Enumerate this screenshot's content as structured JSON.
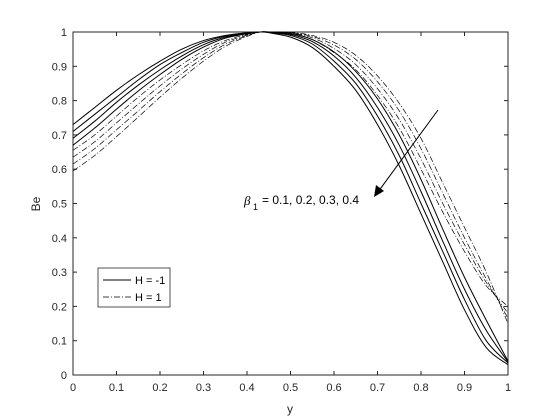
{
  "chart_data": {
    "type": "line",
    "xlabel": "y",
    "ylabel": "Be",
    "xlim": [
      0,
      1
    ],
    "ylim": [
      0,
      1
    ],
    "xticks": [
      "0",
      "0.1",
      "0.2",
      "0.3",
      "0.4",
      "0.5",
      "0.6",
      "0.7",
      "0.8",
      "0.9",
      "1"
    ],
    "yticks": [
      "0",
      "0.1",
      "0.2",
      "0.3",
      "0.4",
      "0.5",
      "0.6",
      "0.7",
      "0.8",
      "0.9",
      "1"
    ],
    "x": [
      0,
      0.05,
      0.1,
      0.15,
      0.2,
      0.25,
      0.3,
      0.35,
      0.4,
      0.43,
      0.45,
      0.5,
      0.55,
      0.6,
      0.65,
      0.7,
      0.75,
      0.8,
      0.85,
      0.9,
      0.95,
      1
    ],
    "series": [
      {
        "group": "H = -1",
        "style": "solid",
        "values": [
          0.73,
          0.78,
          0.83,
          0.875,
          0.915,
          0.95,
          0.975,
          0.99,
          0.998,
          1.0,
          0.998,
          0.985,
          0.955,
          0.9,
          0.83,
          0.73,
          0.61,
          0.47,
          0.33,
          0.19,
          0.08,
          0.03
        ]
      },
      {
        "group": "H = -1",
        "style": "solid",
        "values": [
          0.71,
          0.76,
          0.81,
          0.86,
          0.905,
          0.94,
          0.97,
          0.988,
          0.997,
          1.0,
          0.999,
          0.99,
          0.965,
          0.915,
          0.85,
          0.755,
          0.64,
          0.5,
          0.36,
          0.22,
          0.1,
          0.035
        ]
      },
      {
        "group": "H = -1",
        "style": "solid",
        "values": [
          0.69,
          0.74,
          0.795,
          0.845,
          0.89,
          0.93,
          0.963,
          0.985,
          0.996,
          1.0,
          1.0,
          0.993,
          0.972,
          0.93,
          0.868,
          0.78,
          0.67,
          0.535,
          0.39,
          0.25,
          0.13,
          0.038
        ]
      },
      {
        "group": "H = -1",
        "style": "solid",
        "values": [
          0.67,
          0.72,
          0.775,
          0.828,
          0.876,
          0.92,
          0.956,
          0.982,
          0.995,
          1.0,
          1.0,
          0.996,
          0.978,
          0.942,
          0.885,
          0.805,
          0.7,
          0.57,
          0.425,
          0.285,
          0.16,
          0.04
        ]
      },
      {
        "group": "H = 1",
        "style": "dashdot",
        "values": [
          0.655,
          0.7,
          0.755,
          0.81,
          0.86,
          0.905,
          0.945,
          0.975,
          0.993,
          1.0,
          1.0,
          0.995,
          0.978,
          0.94,
          0.89,
          0.815,
          0.72,
          0.6,
          0.475,
          0.36,
          0.26,
          0.2
        ]
      },
      {
        "group": "H = 1",
        "style": "dashdot",
        "values": [
          0.635,
          0.68,
          0.735,
          0.79,
          0.843,
          0.892,
          0.935,
          0.97,
          0.991,
          1.0,
          1.0,
          0.997,
          0.983,
          0.952,
          0.905,
          0.835,
          0.745,
          0.63,
          0.5,
          0.38,
          0.27,
          0.18
        ]
      },
      {
        "group": "H = 1",
        "style": "dashdot",
        "values": [
          0.615,
          0.66,
          0.715,
          0.77,
          0.826,
          0.878,
          0.925,
          0.964,
          0.989,
          1.0,
          1.0,
          0.998,
          0.987,
          0.962,
          0.92,
          0.855,
          0.77,
          0.66,
          0.53,
          0.4,
          0.28,
          0.165
        ]
      },
      {
        "group": "H = 1",
        "style": "dashdot",
        "values": [
          0.595,
          0.64,
          0.695,
          0.752,
          0.81,
          0.865,
          0.915,
          0.958,
          0.987,
          1.0,
          1.0,
          0.999,
          0.99,
          0.97,
          0.932,
          0.872,
          0.792,
          0.69,
          0.56,
          0.43,
          0.3,
          0.15
        ]
      }
    ],
    "legend": [
      {
        "label": "H = -1",
        "style": "solid"
      },
      {
        "label": "H = 1",
        "style": "dashdot"
      }
    ],
    "legend_position": "lower-left",
    "annotation": {
      "symbol": "β",
      "subscript": "1",
      "text": "= 0.1, 0.2, 0.3, 0.4"
    },
    "grid": false,
    "line_color": "#000000"
  }
}
